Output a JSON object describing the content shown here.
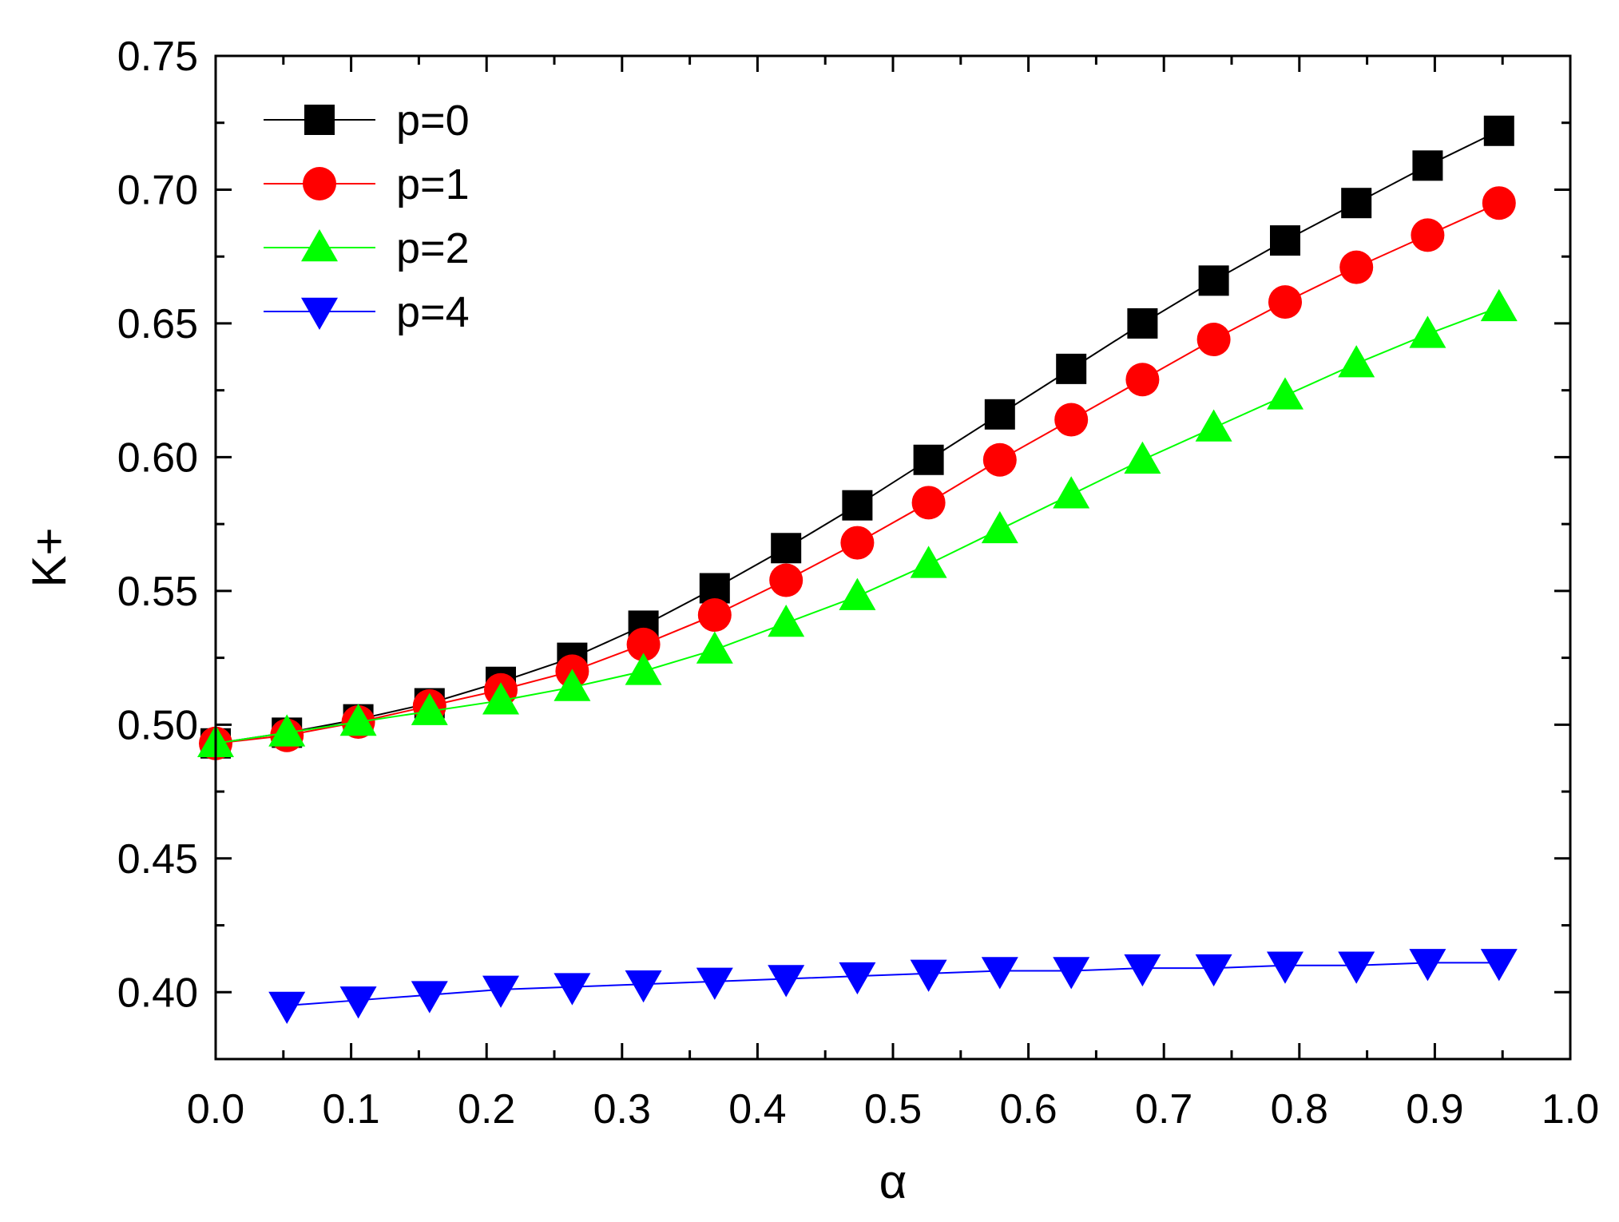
{
  "chart_data": {
    "type": "line",
    "xlabel": "α",
    "ylabel": "K+",
    "xlim": [
      0.0,
      1.0
    ],
    "ylim": [
      0.375,
      0.75
    ],
    "xticks": [
      "0.0",
      "0.1",
      "0.2",
      "0.3",
      "0.4",
      "0.5",
      "0.6",
      "0.7",
      "0.8",
      "0.9",
      "1.0"
    ],
    "yticks": [
      "0.40",
      "0.45",
      "0.50",
      "0.55",
      "0.60",
      "0.65",
      "0.70",
      "0.75"
    ],
    "grid": false,
    "legend_position": "top-left",
    "x": [
      0.0,
      0.0526,
      0.1053,
      0.1579,
      0.2105,
      0.2632,
      0.3158,
      0.3684,
      0.4211,
      0.4737,
      0.5263,
      0.5789,
      0.6316,
      0.6842,
      0.7368,
      0.7895,
      0.8421,
      0.8947,
      0.9474
    ],
    "series": [
      {
        "name": "p=0",
        "color": "#000000",
        "marker": "square",
        "x": [
          0.0,
          0.0526,
          0.1053,
          0.1579,
          0.2105,
          0.2632,
          0.3158,
          0.3684,
          0.4211,
          0.4737,
          0.5263,
          0.5789,
          0.6316,
          0.6842,
          0.7368,
          0.7895,
          0.8421,
          0.8947,
          0.9474
        ],
        "values": [
          0.493,
          0.497,
          0.502,
          0.508,
          0.516,
          0.525,
          0.537,
          0.551,
          0.566,
          0.582,
          0.599,
          0.616,
          0.633,
          0.65,
          0.666,
          0.681,
          0.695,
          0.709,
          0.722
        ]
      },
      {
        "name": "p=1",
        "color": "#ff0000",
        "marker": "circle",
        "x": [
          0.0,
          0.0526,
          0.1053,
          0.1579,
          0.2105,
          0.2632,
          0.3158,
          0.3684,
          0.4211,
          0.4737,
          0.5263,
          0.5789,
          0.6316,
          0.6842,
          0.7368,
          0.7895,
          0.8421,
          0.8947,
          0.9474
        ],
        "values": [
          0.493,
          0.496,
          0.501,
          0.507,
          0.513,
          0.52,
          0.53,
          0.541,
          0.554,
          0.568,
          0.583,
          0.599,
          0.614,
          0.629,
          0.644,
          0.658,
          0.671,
          0.683,
          0.695
        ]
      },
      {
        "name": "p=2",
        "color": "#00ff00",
        "marker": "triangle-up",
        "x": [
          0.0,
          0.0526,
          0.1053,
          0.1579,
          0.2105,
          0.2632,
          0.3158,
          0.3684,
          0.4211,
          0.4737,
          0.5263,
          0.5789,
          0.6316,
          0.6842,
          0.7368,
          0.7895,
          0.8421,
          0.8947,
          0.9474
        ],
        "values": [
          0.493,
          0.497,
          0.501,
          0.505,
          0.509,
          0.514,
          0.52,
          0.528,
          0.538,
          0.548,
          0.56,
          0.573,
          0.586,
          0.599,
          0.611,
          0.623,
          0.635,
          0.646,
          0.656
        ]
      },
      {
        "name": "p=4",
        "color": "#0000ff",
        "marker": "triangle-down",
        "x": [
          0.0526,
          0.1053,
          0.1579,
          0.2105,
          0.2632,
          0.3158,
          0.3684,
          0.4211,
          0.4737,
          0.5263,
          0.5789,
          0.6316,
          0.6842,
          0.7368,
          0.7895,
          0.8421,
          0.8947,
          0.9474
        ],
        "values": [
          0.395,
          0.397,
          0.399,
          0.401,
          0.402,
          0.403,
          0.404,
          0.405,
          0.406,
          0.407,
          0.408,
          0.408,
          0.409,
          0.409,
          0.41,
          0.41,
          0.411,
          0.411
        ]
      }
    ]
  }
}
